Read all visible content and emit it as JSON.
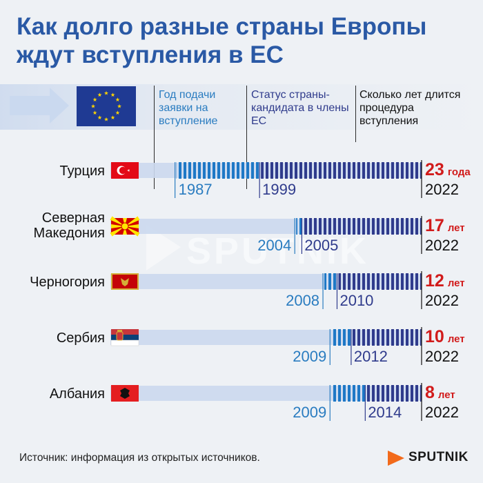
{
  "title": {
    "line1": "Как долго разные страны Европы",
    "line2": "ждут вступления в ЕС"
  },
  "columns": {
    "application": "Год подачи заявки на вступление",
    "candidate": "Статус страны-кандидата в члены ЕС",
    "duration": "Сколько лет длится процедура вступления"
  },
  "chart_data": {
    "type": "bar",
    "axis": {
      "min_year": 1984,
      "max_year": 2022
    },
    "end_year": 2022,
    "colors": {
      "application": "#1e78c6",
      "candidate": "#2f3b8c",
      "track": "#cbd8ee",
      "years": "#d11b1b",
      "year_application": "#2a7cc0",
      "year_candidate": "#2f3b8c"
    },
    "countries": [
      {
        "name": "Турция",
        "flag": "turkey-flag",
        "application": 1987,
        "candidate": 1999,
        "end": "2022",
        "years": 23,
        "unit": "года"
      },
      {
        "name": "Северная Македония",
        "name_lines": [
          "Северная",
          "Македония"
        ],
        "flag": "north-macedonia-flag",
        "application": 2004,
        "candidate": 2005,
        "end": "2022",
        "years": 17,
        "unit": "лет"
      },
      {
        "name": "Черногория",
        "flag": "montenegro-flag",
        "application": 2008,
        "candidate": 2010,
        "end": "2022",
        "years": 12,
        "unit": "лет"
      },
      {
        "name": "Сербия",
        "flag": "serbia-flag",
        "application": 2009,
        "candidate": 2012,
        "end": "2022",
        "years": 10,
        "unit": "лет"
      },
      {
        "name": "Албания",
        "flag": "albania-flag",
        "application": 2009,
        "candidate": 2014,
        "end": "2022",
        "years": 8,
        "unit": "лет"
      }
    ]
  },
  "watermark": "SPUTNIK",
  "source": "Источник: информация из открытых источников.",
  "logo": "SPUTNIK"
}
